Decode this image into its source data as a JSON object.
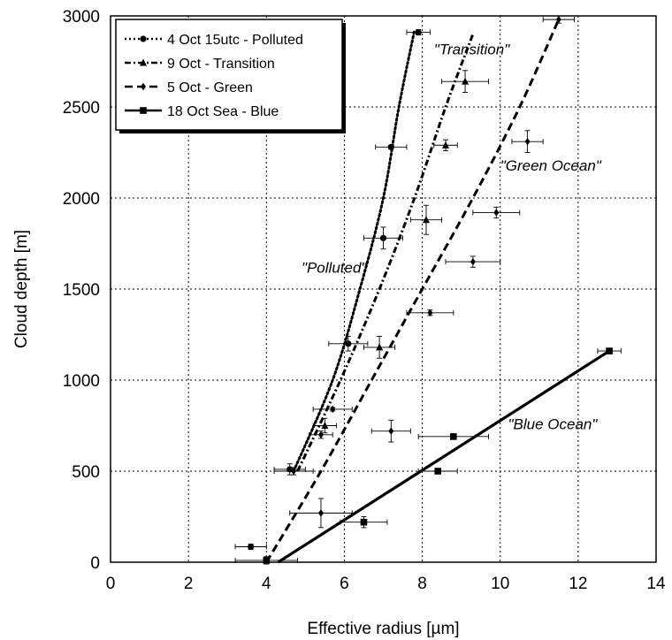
{
  "chart_data": {
    "type": "scatter",
    "xlabel": "Effective radius [µm]",
    "ylabel": "Cloud depth [m]",
    "xlim": [
      0,
      14
    ],
    "ylim": [
      0,
      3000
    ],
    "x_ticks": [
      0,
      2,
      4,
      6,
      8,
      10,
      12,
      14
    ],
    "y_ticks": [
      0,
      500,
      1000,
      1500,
      2000,
      2500,
      3000
    ],
    "grid": true,
    "legend_placement": "top-left",
    "series": [
      {
        "name": "4 Oct 15utc - Polluted",
        "marker": "circle",
        "line": "dotted",
        "points": [
          {
            "x": 3.6,
            "y": 85,
            "xerr": 0.4,
            "yerr": 15
          },
          {
            "x": 4.6,
            "y": 510,
            "xerr": 0.4,
            "yerr": 30
          },
          {
            "x": 6.1,
            "y": 1200,
            "xerr": 0.5,
            "yerr": 40
          },
          {
            "x": 7.0,
            "y": 1780,
            "xerr": 0.5,
            "yerr": 60
          },
          {
            "x": 7.2,
            "y": 2280,
            "xerr": 0.4,
            "yerr": 10
          },
          {
            "x": 7.9,
            "y": 2910,
            "xerr": 0.3,
            "yerr": 15
          }
        ],
        "fit": [
          [
            4.7,
            500
          ],
          [
            5.7,
            1000
          ],
          [
            6.4,
            1500
          ],
          [
            7.0,
            2000
          ],
          [
            7.4,
            2500
          ],
          [
            7.8,
            2920
          ]
        ]
      },
      {
        "name": "9 Oct - Transition",
        "marker": "triangle",
        "line": "dash-dot",
        "points": [
          {
            "x": 5.5,
            "y": 750,
            "xerr": 0.3,
            "yerr": 40
          },
          {
            "x": 6.9,
            "y": 1180,
            "xerr": 0.4,
            "yerr": 60
          },
          {
            "x": 8.1,
            "y": 1880,
            "xerr": 0.4,
            "yerr": 80
          },
          {
            "x": 8.6,
            "y": 2290,
            "xerr": 0.3,
            "yerr": 30
          },
          {
            "x": 9.1,
            "y": 2640,
            "xerr": 0.6,
            "yerr": 60
          }
        ],
        "fit": [
          [
            4.8,
            500
          ],
          [
            5.9,
            1000
          ],
          [
            6.9,
            1500
          ],
          [
            7.8,
            2000
          ],
          [
            8.6,
            2500
          ],
          [
            9.3,
            2900
          ]
        ]
      },
      {
        "name": "5 Oct - Green",
        "marker": "diamond",
        "line": "dashed",
        "points": [
          {
            "x": 5.7,
            "y": 840,
            "xerr": 0.5,
            "yerr": 10
          },
          {
            "x": 5.4,
            "y": 700,
            "xerr": 0.3,
            "yerr": 20
          },
          {
            "x": 4.7,
            "y": 500,
            "xerr": 0.5,
            "yerr": 20
          },
          {
            "x": 5.4,
            "y": 270,
            "xerr": 0.8,
            "yerr": 80
          },
          {
            "x": 7.2,
            "y": 720,
            "xerr": 0.5,
            "yerr": 60
          },
          {
            "x": 8.2,
            "y": 1370,
            "xerr": 0.6,
            "yerr": 15
          },
          {
            "x": 9.3,
            "y": 1650,
            "xerr": 0.7,
            "yerr": 30
          },
          {
            "x": 9.9,
            "y": 1920,
            "xerr": 0.6,
            "yerr": 30
          },
          {
            "x": 10.7,
            "y": 2310,
            "xerr": 0.4,
            "yerr": 60
          },
          {
            "x": 11.5,
            "y": 2980,
            "xerr": 0.4,
            "yerr": 20
          }
        ],
        "fit": [
          [
            4.0,
            0
          ],
          [
            5.4,
            500
          ],
          [
            6.7,
            1000
          ],
          [
            8.0,
            1500
          ],
          [
            9.3,
            2000
          ],
          [
            10.5,
            2500
          ],
          [
            11.5,
            2980
          ]
        ]
      },
      {
        "name": "18 Oct Sea - Blue",
        "marker": "square",
        "line": "solid",
        "points": [
          {
            "x": 4.0,
            "y": 10,
            "xerr": 0.8,
            "yerr": 20
          },
          {
            "x": 6.5,
            "y": 220,
            "xerr": 0.6,
            "yerr": 30
          },
          {
            "x": 8.4,
            "y": 500,
            "xerr": 0.5,
            "yerr": 10
          },
          {
            "x": 8.8,
            "y": 690,
            "xerr": 0.9,
            "yerr": 10
          },
          {
            "x": 12.8,
            "y": 1160,
            "xerr": 0.3,
            "yerr": 15
          }
        ],
        "fit": [
          [
            4.3,
            0
          ],
          [
            12.8,
            1160
          ]
        ]
      }
    ],
    "annotations": [
      {
        "text": "\"Transition\"",
        "x": 8.3,
        "y": 2790
      },
      {
        "text": "\"Green Ocean\"",
        "x": 10.0,
        "y": 2150
      },
      {
        "text": "\"Polluted\"",
        "x": 4.9,
        "y": 1590
      },
      {
        "text": "\"Blue Ocean\"",
        "x": 10.2,
        "y": 730
      }
    ]
  }
}
